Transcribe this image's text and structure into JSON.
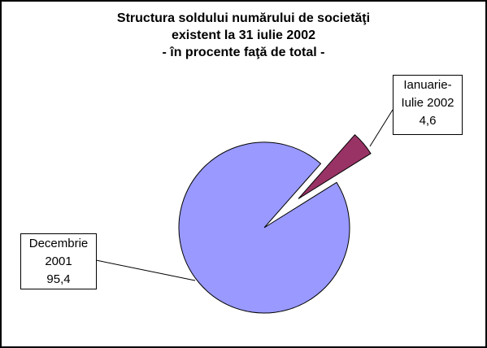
{
  "chart_data": {
    "type": "pie",
    "title": "Structura soldului numărului de societăţi\nexistent la 31 iulie 2002\n- în procente faţă de total -",
    "categories": [
      "Decembrie 2001",
      "Ianuarie-Iulie 2002"
    ],
    "values": [
      95.4,
      4.6
    ],
    "value_labels": [
      "95,4",
      "4,6"
    ],
    "colors": [
      "#9999ff",
      "#993366"
    ]
  }
}
